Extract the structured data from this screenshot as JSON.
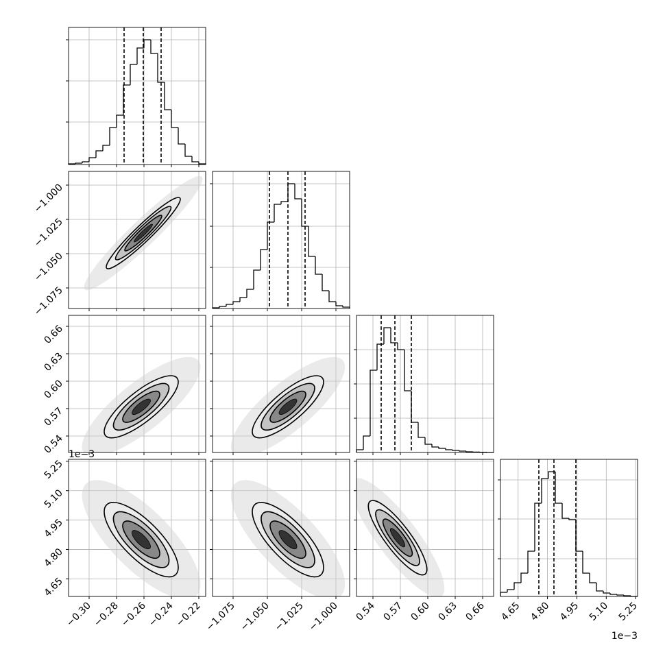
{
  "chart_data": {
    "type": "corner",
    "grid": true,
    "line_color": "#000000",
    "hist_ylim": [
      0,
      100
    ],
    "levels": [
      0.5,
      1,
      1.5,
      2
    ],
    "params": [
      {
        "lim": [
          -0.315,
          -0.215
        ],
        "ticks": [
          {
            "value": -0.3,
            "label": "−0.30"
          },
          {
            "value": -0.28,
            "label": "−0.28"
          },
          {
            "value": -0.26,
            "label": "−0.26"
          },
          {
            "value": -0.24,
            "label": "−0.24"
          },
          {
            "value": -0.22,
            "label": "−0.22"
          }
        ],
        "bins": [
          -0.315,
          -0.31,
          -0.305,
          -0.3,
          -0.295,
          -0.29,
          -0.285,
          -0.28,
          -0.275,
          -0.27,
          -0.265,
          -0.26,
          -0.255,
          -0.25,
          -0.245,
          -0.24,
          -0.235,
          -0.23,
          -0.225,
          -0.22,
          -0.215
        ],
        "counts": [
          0.5,
          1,
          2,
          5,
          10,
          14,
          27,
          36,
          58,
          73,
          85,
          91,
          81,
          60,
          40,
          27,
          15,
          6,
          2,
          0.5
        ],
        "quantiles": [
          -0.2745,
          -0.2605,
          -0.2475
        ],
        "hist_yticks": [
          31,
          61,
          91
        ]
      },
      {
        "lim": [
          -1.09,
          -0.99
        ],
        "ticks": [
          {
            "value": -1.075,
            "label": "−1.075"
          },
          {
            "value": -1.05,
            "label": "−1.050"
          },
          {
            "value": -1.025,
            "label": "−1.025"
          },
          {
            "value": -1.0,
            "label": "−1.000"
          }
        ],
        "bins": [
          -1.09,
          -1.085,
          -1.08,
          -1.075,
          -1.07,
          -1.065,
          -1.06,
          -1.055,
          -1.05,
          -1.045,
          -1.04,
          -1.035,
          -1.03,
          -1.025,
          -1.02,
          -1.015,
          -1.01,
          -1.005,
          -1.0,
          -0.995,
          -0.99
        ],
        "counts": [
          0.5,
          1.5,
          3,
          5,
          8,
          14,
          28,
          43,
          63,
          76,
          78,
          91,
          80,
          60,
          38,
          25,
          13,
          5,
          2,
          1
        ],
        "quantiles": [
          -1.0485,
          -1.035,
          -1.0225
        ],
        "hist_yticks": [
          30,
          60,
          91
        ]
      },
      {
        "lim": [
          0.522,
          0.672
        ],
        "ticks": [
          {
            "value": 0.54,
            "label": "0.54"
          },
          {
            "value": 0.57,
            "label": "0.57"
          },
          {
            "value": 0.6,
            "label": "0.60"
          },
          {
            "value": 0.63,
            "label": "0.63"
          },
          {
            "value": 0.66,
            "label": "0.66"
          }
        ],
        "bins": [
          0.522,
          0.5295,
          0.537,
          0.5445,
          0.552,
          0.5595,
          0.567,
          0.5745,
          0.582,
          0.5895,
          0.597,
          0.6045,
          0.612,
          0.6195,
          0.627,
          0.6345,
          0.642,
          0.6495,
          0.657,
          0.6645,
          0.672
        ],
        "counts": [
          2,
          12,
          60,
          79,
          91,
          80,
          75,
          45,
          22,
          11,
          6,
          4,
          3,
          2,
          1.5,
          1,
          0.5,
          0.3,
          0.2,
          0
        ],
        "quantiles": [
          0.549,
          0.564,
          0.582
        ],
        "hist_yticks": [
          25,
          50,
          75
        ]
      },
      {
        "lim": [
          4.56,
          5.26
        ],
        "ticks": [
          {
            "value": 4.65,
            "label": "4.65"
          },
          {
            "value": 4.8,
            "label": "4.80"
          },
          {
            "value": 4.95,
            "label": "4.95"
          },
          {
            "value": 5.1,
            "label": "5.10"
          },
          {
            "value": 5.25,
            "label": "5.25"
          }
        ],
        "bins": [
          4.56,
          4.595,
          4.63,
          4.665,
          4.7,
          4.735,
          4.77,
          4.805,
          4.84,
          4.875,
          4.91,
          4.945,
          4.98,
          5.015,
          5.05,
          5.085,
          5.12,
          5.155,
          5.19,
          5.225,
          5.26
        ],
        "counts": [
          3,
          5,
          10,
          17,
          33,
          68,
          86,
          91,
          68,
          57,
          56,
          33,
          17,
          10,
          4,
          2.5,
          1.5,
          1,
          0.5,
          0
        ],
        "quantiles": [
          4.756,
          4.833,
          4.945
        ],
        "hist_yticks": [
          27.5,
          56.5,
          85
        ],
        "offset_label": "1e−3"
      }
    ],
    "pairs": [
      {
        "x": 0,
        "y": 1,
        "center": [
          -0.2605,
          -1.035
        ],
        "sd": [
          0.0135,
          0.013
        ],
        "corr": 0.95
      },
      {
        "x": 0,
        "y": 2,
        "center": [
          -0.262,
          0.572
        ],
        "sd": [
          0.0135,
          0.017
        ],
        "corr": 0.8
      },
      {
        "x": 1,
        "y": 2,
        "center": [
          -1.035,
          0.572
        ],
        "sd": [
          0.013,
          0.017
        ],
        "corr": 0.8
      },
      {
        "x": 0,
        "y": 3,
        "center": [
          -0.262,
          4.85
        ],
        "sd": [
          0.0135,
          0.095
        ],
        "corr": -0.75
      },
      {
        "x": 1,
        "y": 3,
        "center": [
          -1.035,
          4.85
        ],
        "sd": [
          0.013,
          0.095
        ],
        "corr": -0.75
      },
      {
        "x": 2,
        "y": 3,
        "center": [
          0.567,
          4.86
        ],
        "sd": [
          0.016,
          0.095
        ],
        "corr": -0.85
      }
    ]
  }
}
